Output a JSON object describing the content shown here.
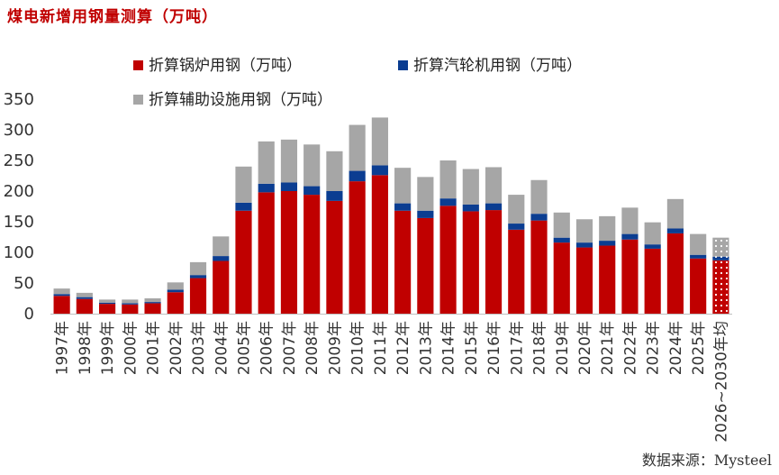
{
  "page": {
    "title": "煤电新增用钢量测算（万吨）",
    "source": "数据来源：Mysteel"
  },
  "chart_data": {
    "type": "bar",
    "stacked": true,
    "title": "煤电新增用钢量测算（万吨）",
    "ylim": [
      0,
      350
    ],
    "yticks": [
      0,
      50,
      100,
      150,
      200,
      250,
      300,
      350
    ],
    "categories": [
      "1997年",
      "1998年",
      "1999年",
      "2000年",
      "2001年",
      "2002年",
      "2003年",
      "2004年",
      "2005年",
      "2006年",
      "2007年",
      "2008年",
      "2009年",
      "2010年",
      "2011年",
      "2012年",
      "2013年",
      "2014年",
      "2015年",
      "2016年",
      "2017年",
      "2018年",
      "2019年",
      "2020年",
      "2021年",
      "2022年",
      "2023年",
      "2024年",
      "2025年",
      "2026~2030年均"
    ],
    "series": [
      {
        "name": "折算锅炉用钢（万吨）",
        "color": "#c00000",
        "values": [
          29,
          24,
          16,
          15,
          17,
          35,
          58,
          86,
          168,
          198,
          200,
          194,
          184,
          216,
          226,
          168,
          156,
          176,
          167,
          169,
          137,
          152,
          116,
          108,
          111,
          121,
          106,
          131,
          90,
          87
        ]
      },
      {
        "name": "折算汽轮机用钢（万吨）",
        "color": "#0b3d91",
        "values": [
          3,
          3,
          2,
          2,
          2,
          4,
          5,
          8,
          13,
          14,
          14,
          14,
          16,
          17,
          16,
          12,
          12,
          12,
          11,
          11,
          10,
          11,
          8,
          8,
          8,
          9,
          7,
          8,
          6,
          6
        ]
      },
      {
        "name": "折算辅助设施用钢（万吨）",
        "color": "#a6a6a6",
        "values": [
          9,
          7,
          5,
          6,
          6,
          12,
          21,
          32,
          59,
          69,
          70,
          68,
          65,
          75,
          78,
          58,
          55,
          62,
          58,
          59,
          47,
          55,
          41,
          38,
          40,
          43,
          36,
          48,
          34,
          31
        ]
      }
    ],
    "forecast_index": 29,
    "legend": [
      {
        "name": "折算锅炉用钢（万吨）",
        "color": "#c00000"
      },
      {
        "name": "折算汽轮机用钢（万吨）",
        "color": "#0b3d91"
      },
      {
        "name": "折算辅助设施用钢（万吨）",
        "color": "#a6a6a6"
      }
    ],
    "legend_position": "top"
  }
}
